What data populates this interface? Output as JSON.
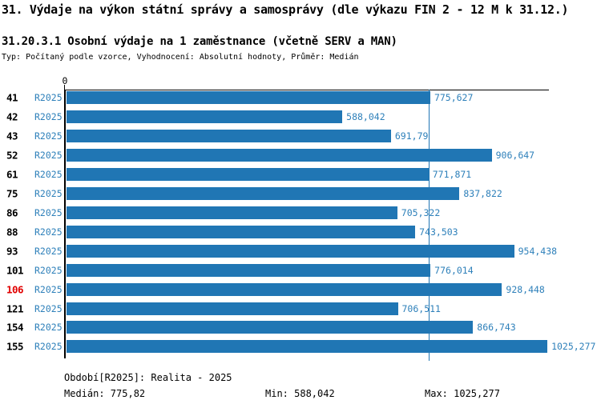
{
  "header": {
    "title": "31. Výdaje na výkon státní správy a samosprávy (dle výkazu FIN 2 - 12 M k 31.12.)",
    "subtitle": "31.20.3.1 Osobní výdaje na 1 zaměstnance (včetně SERV a MAN)",
    "meta": "Typ: Počítaný podle vzorce, Vyhodnocení: Absolutní hodnoty, Průměr: Medián"
  },
  "chart_data": {
    "type": "bar",
    "orientation": "horizontal",
    "title": "31.20.3.1 Osobní výdaje na 1 zaměstnance (včetně SERV a MAN)",
    "series_label": "R2025",
    "x_axis": {
      "zero_label": "0",
      "max": 1032,
      "grid": false
    },
    "median_value": 775.82,
    "rows": [
      {
        "code": "41",
        "period": "R2025",
        "value": 775.627,
        "display": "775,627",
        "highlight": false
      },
      {
        "code": "42",
        "period": "R2025",
        "value": 588.042,
        "display": "588,042",
        "highlight": false
      },
      {
        "code": "43",
        "period": "R2025",
        "value": 691.79,
        "display": "691,79",
        "highlight": false
      },
      {
        "code": "52",
        "period": "R2025",
        "value": 906.647,
        "display": "906,647",
        "highlight": false
      },
      {
        "code": "61",
        "period": "R2025",
        "value": 771.871,
        "display": "771,871",
        "highlight": false
      },
      {
        "code": "75",
        "period": "R2025",
        "value": 837.822,
        "display": "837,822",
        "highlight": false
      },
      {
        "code": "86",
        "period": "R2025",
        "value": 705.322,
        "display": "705,322",
        "highlight": false
      },
      {
        "code": "88",
        "period": "R2025",
        "value": 743.503,
        "display": "743,503",
        "highlight": false
      },
      {
        "code": "93",
        "period": "R2025",
        "value": 954.438,
        "display": "954,438",
        "highlight": false
      },
      {
        "code": "101",
        "period": "R2025",
        "value": 776.014,
        "display": "776,014",
        "highlight": false
      },
      {
        "code": "106",
        "period": "R2025",
        "value": 928.448,
        "display": "928,448",
        "highlight": true
      },
      {
        "code": "121",
        "period": "R2025",
        "value": 706.511,
        "display": "706,511",
        "highlight": false
      },
      {
        "code": "154",
        "period": "R2025",
        "value": 866.743,
        "display": "866,743",
        "highlight": false
      },
      {
        "code": "155",
        "period": "R2025",
        "value": 1025.277,
        "display": "1025,277",
        "highlight": false
      }
    ],
    "legend": {
      "period": "Období[R2025]: Realita - 2025",
      "median": "Medián: 775,82",
      "min": "Min: 588,042",
      "max": "Max: 1025,277"
    },
    "colors": {
      "bar": "#2076b4",
      "text_blue": "#2e80ba",
      "highlight_red": "#e10000",
      "axis": "#000000"
    }
  }
}
